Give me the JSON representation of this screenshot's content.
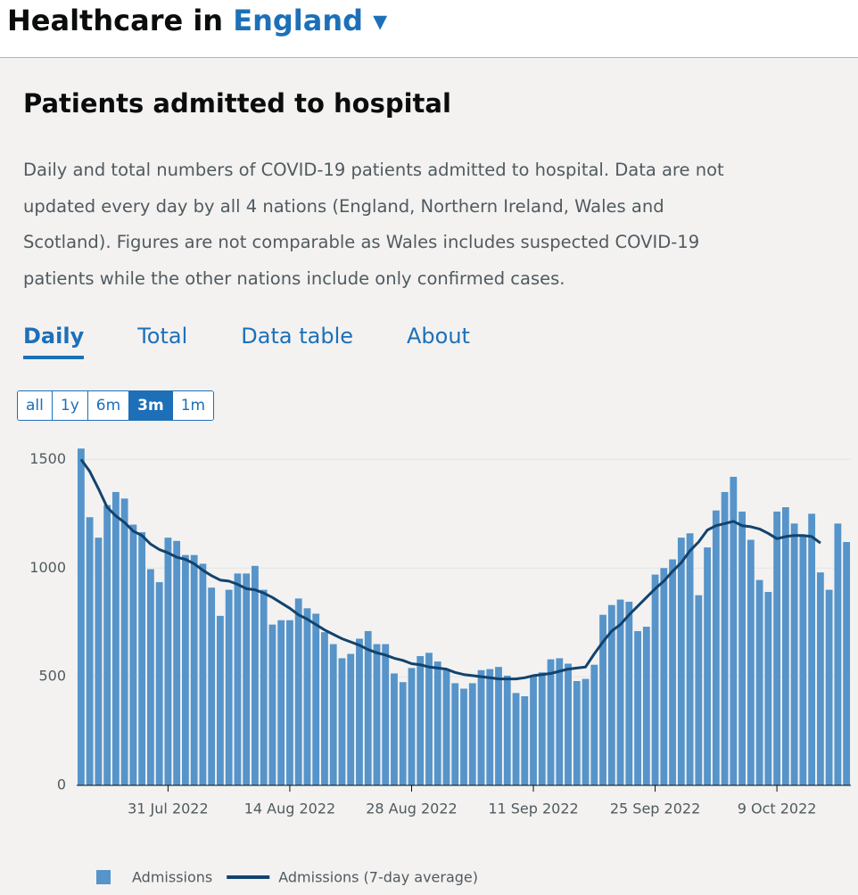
{
  "header": {
    "title": "Healthcare in",
    "link": "England"
  },
  "card": {
    "title": "Patients admitted to hospital",
    "description": "Daily and total numbers of COVID-19 patients admitted to hospital. Data are not updated every day by all 4 nations (England, Northern Ireland, Wales and Scotland). Figures are not comparable as Wales includes suspected COVID-19 patients while the other nations include only confirmed cases.",
    "tabs": [
      "Daily",
      "Total",
      "Data table",
      "About"
    ],
    "active_tab": 0,
    "ranges": [
      "all",
      "1y",
      "6m",
      "3m",
      "1m"
    ],
    "active_range": 3
  },
  "chart_data": {
    "type": "bar",
    "categories": [
      null,
      null,
      null,
      null,
      null,
      null,
      null,
      null,
      null,
      null,
      "31 Jul 2022",
      null,
      null,
      null,
      null,
      null,
      null,
      null,
      null,
      null,
      null,
      null,
      null,
      null,
      "14 Aug 2022",
      null,
      null,
      null,
      null,
      null,
      null,
      null,
      null,
      null,
      null,
      null,
      null,
      null,
      "28 Aug 2022",
      null,
      null,
      null,
      null,
      null,
      null,
      null,
      null,
      null,
      null,
      null,
      null,
      null,
      "11 Sep 2022",
      null,
      null,
      null,
      null,
      null,
      null,
      null,
      null,
      null,
      null,
      null,
      null,
      null,
      "25 Sep 2022",
      null,
      null,
      null,
      null,
      null,
      null,
      null,
      null,
      null,
      null,
      null,
      null,
      null,
      "9 Oct 2022",
      null,
      null,
      null,
      null,
      null,
      null,
      null,
      null
    ],
    "series": [
      {
        "name": "Admissions",
        "type": "bar",
        "color": "#5694ca",
        "values": [
          1550,
          1234,
          1140,
          1290,
          1350,
          1320,
          1200,
          1165,
          995,
          935,
          1140,
          1125,
          1060,
          1060,
          1020,
          910,
          780,
          900,
          975,
          975,
          1010,
          900,
          740,
          760,
          760,
          860,
          815,
          790,
          705,
          650,
          585,
          605,
          675,
          710,
          650,
          650,
          515,
          475,
          540,
          595,
          610,
          570,
          530,
          470,
          445,
          470,
          530,
          535,
          545,
          505,
          425,
          410,
          505,
          520,
          580,
          585,
          560,
          480,
          490,
          555,
          785,
          830,
          855,
          845,
          710,
          730,
          970,
          1000,
          1040,
          1140,
          1160,
          875,
          1095,
          1265,
          1350,
          1420,
          1260,
          1130,
          945,
          890,
          1260,
          1280,
          1205,
          1150,
          1250,
          980,
          900,
          1205,
          1120
        ]
      },
      {
        "name": "Admissions (7-day average)",
        "type": "line",
        "color": "#12436d",
        "values": [
          1500,
          1445,
          1365,
          1280,
          1240,
          1210,
          1170,
          1150,
          1110,
          1085,
          1070,
          1050,
          1040,
          1020,
          990,
          965,
          945,
          940,
          925,
          905,
          900,
          885,
          865,
          840,
          815,
          785,
          765,
          740,
          715,
          695,
          675,
          660,
          645,
          625,
          610,
          600,
          585,
          575,
          560,
          555,
          545,
          540,
          535,
          520,
          510,
          505,
          500,
          495,
          490,
          490,
          490,
          495,
          505,
          510,
          515,
          525,
          535,
          540,
          545,
          605,
          660,
          710,
          740,
          785,
          825,
          865,
          905,
          940,
          985,
          1025,
          1080,
          1120,
          1175,
          1195,
          1205,
          1215,
          1195,
          1190,
          1180,
          1160,
          1135,
          1145,
          1150,
          1150,
          1145,
          1115,
          null,
          null,
          null
        ]
      }
    ],
    "ylim": [
      0,
      1600
    ],
    "yticks": [
      0,
      500,
      1000,
      1500
    ],
    "grid": true
  }
}
